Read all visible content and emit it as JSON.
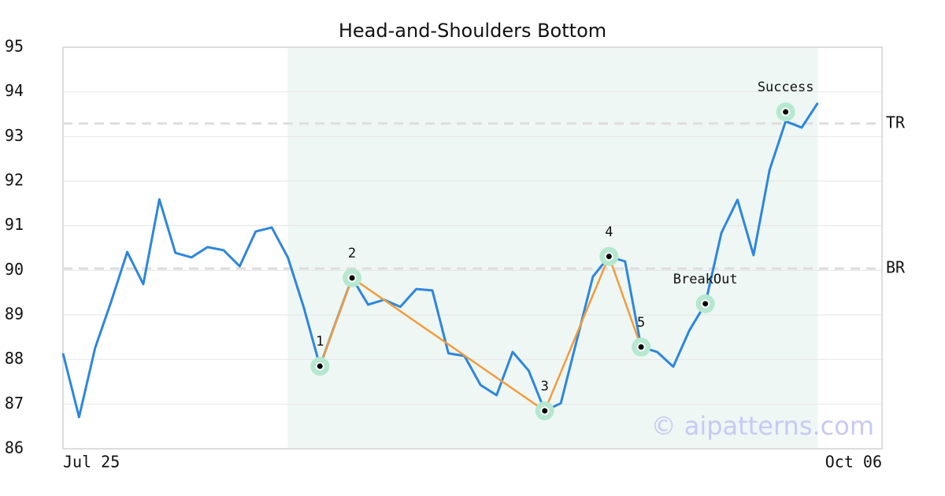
{
  "chart_data": {
    "type": "line",
    "title": "Head-and-Shoulders Bottom",
    "x": [
      0,
      1,
      2,
      3,
      4,
      5,
      6,
      7,
      8,
      9,
      10,
      11,
      12,
      13,
      14,
      15,
      16,
      17,
      18,
      19,
      20,
      21,
      22,
      23,
      24,
      25,
      26,
      27,
      28,
      29,
      30,
      31,
      32,
      33,
      34,
      35,
      36,
      37,
      38,
      39,
      40,
      41,
      42,
      43,
      44,
      45,
      46,
      47
    ],
    "values": [
      88.14,
      86.71,
      88.26,
      89.3,
      90.41,
      89.69,
      91.59,
      90.39,
      90.29,
      90.52,
      90.45,
      90.09,
      90.87,
      90.96,
      90.29,
      89.16,
      87.85,
      88.85,
      89.83,
      89.23,
      89.34,
      89.18,
      89.58,
      89.55,
      88.14,
      88.08,
      87.43,
      87.2,
      88.17,
      87.75,
      86.85,
      87.02,
      88.44,
      89.86,
      90.31,
      90.2,
      88.28,
      88.17,
      87.84,
      88.65,
      89.25,
      90.84,
      91.58,
      90.34,
      92.25,
      93.34,
      93.2,
      93.75
    ],
    "color": "#2e86de",
    "xlim": [
      0,
      51
    ],
    "xticks": [
      {
        "value": 0,
        "label": "Jul 25"
      },
      {
        "value": 51,
        "label": "Oct 06"
      }
    ],
    "ylim": [
      86,
      95
    ],
    "yticks": [
      86,
      87,
      88,
      89,
      90,
      91,
      92,
      93,
      94,
      95
    ],
    "grid": true,
    "shade": [
      14,
      47
    ],
    "shade_color": "#eef7f3",
    "levels": [
      {
        "label": "TR",
        "value": 93.29
      },
      {
        "label": "BR",
        "value": 90.04
      }
    ],
    "pattern": {
      "color": "#f39c3d",
      "points": [
        {
          "label": "1",
          "x": 16,
          "y": 87.85
        },
        {
          "label": "2",
          "x": 18,
          "y": 89.83
        },
        {
          "label": "3",
          "x": 30,
          "y": 86.85
        },
        {
          "label": "4",
          "x": 34,
          "y": 90.31
        },
        {
          "label": "5",
          "x": 36,
          "y": 88.28
        }
      ]
    },
    "signals": [
      {
        "label": "BreakOut",
        "x": 40,
        "y": 89.25
      },
      {
        "label": "Success",
        "x": 45,
        "y": 93.55
      }
    ],
    "watermark": "© aipatterns.com"
  }
}
